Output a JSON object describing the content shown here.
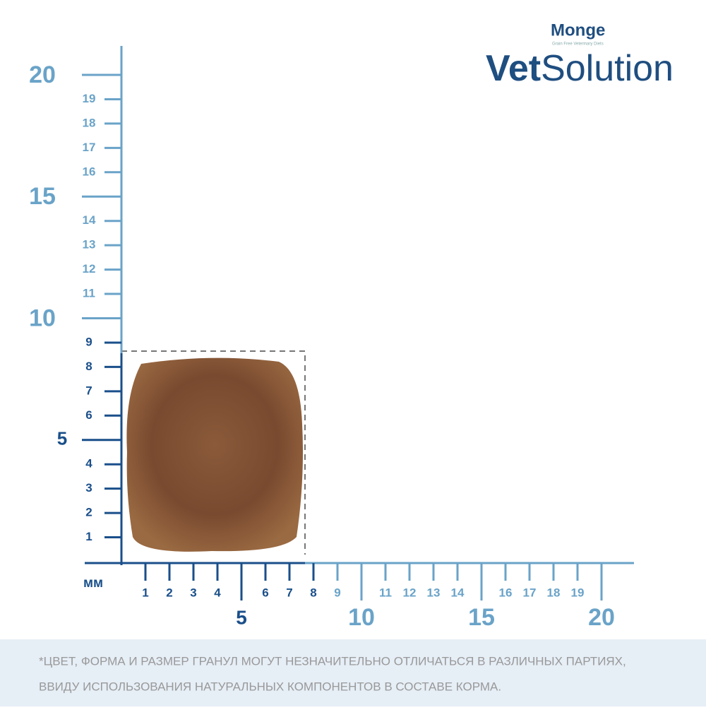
{
  "brand": {
    "maker": "Monge",
    "tagline": "Grain Free Veterinary Diets",
    "line_bold": "Vet",
    "line_light": "Solution"
  },
  "ruler": {
    "unit": "мм",
    "range": [
      0,
      20
    ],
    "y": {
      "dark_minor": [
        1,
        2,
        3,
        4,
        6,
        7,
        8,
        9
      ],
      "light_minor": [
        11,
        12,
        13,
        14,
        16,
        17,
        18,
        19
      ],
      "dark_major": [
        5
      ],
      "light_major": [
        10,
        15,
        20
      ]
    },
    "x": {
      "dark_minor": [
        1,
        2,
        3,
        4,
        6,
        7,
        8
      ],
      "light_minor": [
        9,
        11,
        12,
        13,
        14,
        16,
        17,
        18,
        19
      ],
      "dark_major": [
        5
      ],
      "light_major": [
        10,
        15,
        20
      ]
    }
  },
  "disclaimer": [
    "*ЦВЕТ, ФОРМА И РАЗМЕР ГРАНУЛ МОГУТ НЕЗНАЧИТЕЛЬНО ОТЛИЧАТЬСЯ В РАЗЛИЧНЫХ ПАРТИЯХ,",
    "ВВИДУ ИСПОЛЬЗОВАНИЯ НАТУРАЛЬНЫХ КОМПОНЕНТОВ В СОСТАВЕ КОРМА."
  ]
}
